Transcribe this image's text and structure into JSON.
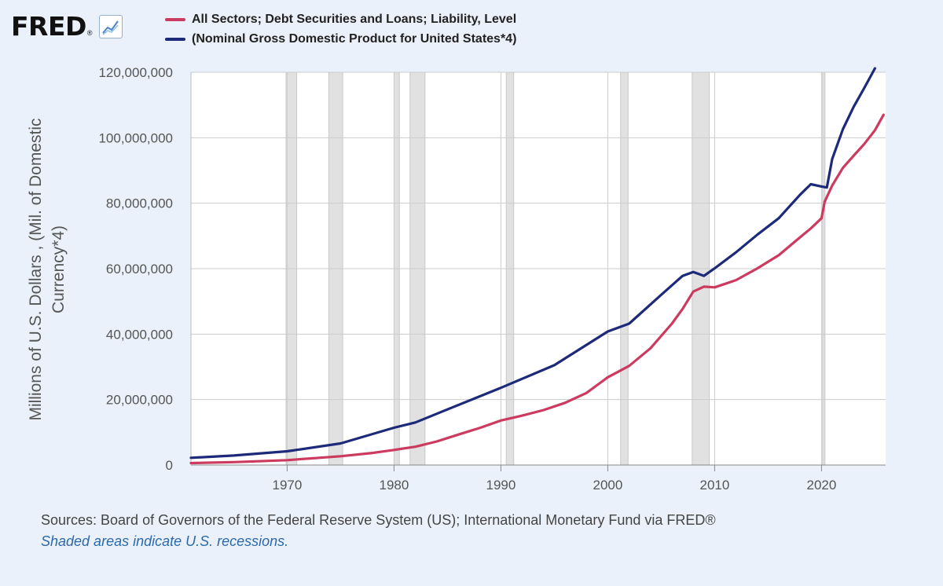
{
  "header": {
    "logo_text": "FRED",
    "logo_registered": "®"
  },
  "icons": {
    "logo": "line-chart-icon"
  },
  "colors": {
    "background": "#eaf1fa",
    "plot_background": "#ffffff",
    "series_debt": "#cc3b5f",
    "series_gdp": "#1d2a7a",
    "recession_fill": "#e1e1e1"
  },
  "legend": [
    {
      "label": "All Sectors; Debt Securities and Loans; Liability, Level",
      "color": "#cc3b5f"
    },
    {
      "label": "(Nominal Gross Domestic Product for United States*4)",
      "color": "#1d2a7a"
    }
  ],
  "footer": {
    "sources": "Sources: Board of Governors of the Federal Reserve System (US); International Monetary Fund via FRED®",
    "note": "Shaded areas indicate U.S. recessions."
  },
  "chart_data": {
    "type": "line",
    "title": "",
    "xlabel": "",
    "ylabel": "Millions of U.S. Dollars , (Mil. of Domestic Currency*4)",
    "xlim": [
      1961,
      2026
    ],
    "ylim": [
      0,
      120000000
    ],
    "yticks": [
      0,
      20000000,
      40000000,
      60000000,
      80000000,
      100000000,
      120000000
    ],
    "ytick_labels": [
      "0",
      "20,000,000",
      "40,000,000",
      "60,000,000",
      "80,000,000",
      "100,000,000",
      "120,000,000"
    ],
    "xticks": [
      1970,
      1980,
      1990,
      2000,
      2010,
      2020
    ],
    "xtick_labels": [
      "1970",
      "1980",
      "1990",
      "2000",
      "2010",
      "2020"
    ],
    "grid": true,
    "legend_position": "top",
    "recessions": [
      [
        1969.9,
        1970.9
      ],
      [
        1973.9,
        1975.2
      ],
      [
        1980.0,
        1980.5
      ],
      [
        1981.5,
        1982.9
      ],
      [
        1990.5,
        1991.2
      ],
      [
        2001.2,
        2001.9
      ],
      [
        2007.9,
        2009.5
      ],
      [
        2020.1,
        2020.3
      ]
    ],
    "series": [
      {
        "name": "All Sectors; Debt Securities and Loans; Liability, Level",
        "color": "#cc3b5f",
        "x": [
          1961,
          1965,
          1970,
          1973,
          1975,
          1978,
          1980,
          1982,
          1984,
          1986,
          1988,
          1990,
          1992,
          1994,
          1996,
          1998,
          2000,
          2002,
          2004,
          2006,
          2007,
          2008,
          2009,
          2010,
          2012,
          2014,
          2016,
          2018,
          2019,
          2020,
          2020.3,
          2021,
          2022,
          2023,
          2024,
          2025,
          2025.8
        ],
        "y": [
          600000,
          900000,
          1500000,
          2200000,
          2700000,
          3700000,
          4600000,
          5600000,
          7200000,
          9300000,
          11300000,
          13600000,
          15100000,
          16800000,
          19000000,
          22000000,
          26800000,
          30300000,
          35700000,
          43200000,
          47700000,
          53000000,
          54500000,
          54300000,
          56500000,
          60100000,
          64100000,
          69600000,
          72300000,
          75400000,
          80500000,
          85400000,
          90800000,
          94500000,
          98100000,
          102300000,
          107000000
        ]
      },
      {
        "name": "(Nominal Gross Domestic Product for United States*4)",
        "color": "#1d2a7a",
        "x": [
          1961,
          1965,
          1970,
          1975,
          1980,
          1982,
          1985,
          1990,
          1995,
          2000,
          2002,
          2005,
          2007,
          2008,
          2009,
          2010,
          2012,
          2014,
          2016,
          2018,
          2019,
          2020,
          2020.5,
          2021,
          2022,
          2023,
          2024,
          2025
        ],
        "y": [
          2200000,
          2900000,
          4200000,
          6600000,
          11400000,
          13000000,
          17000000,
          23600000,
          30500000,
          40800000,
          43200000,
          52000000,
          57800000,
          59000000,
          57800000,
          60100000,
          65000000,
          70400000,
          75400000,
          82600000,
          85800000,
          85100000,
          84800000,
          93500000,
          102600000,
          109400000,
          115200000,
          121200000
        ]
      }
    ]
  }
}
